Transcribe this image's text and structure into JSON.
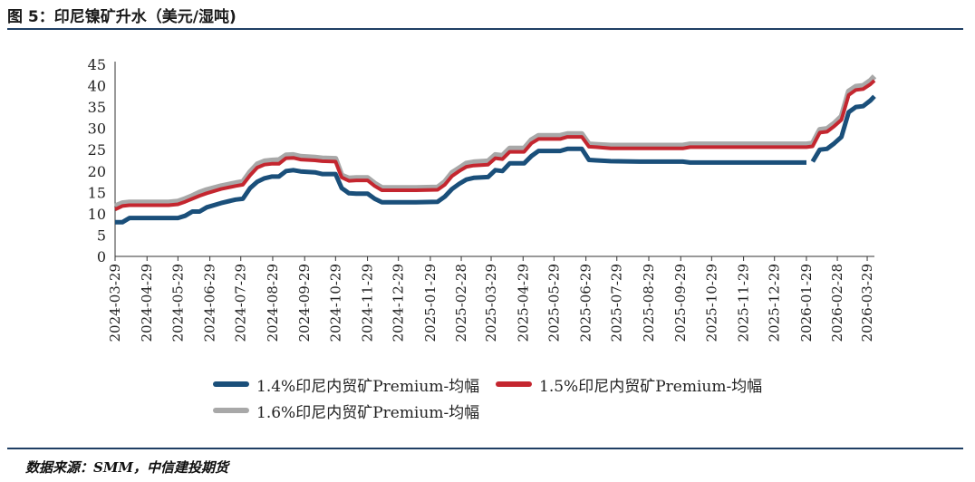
{
  "figure": {
    "title": "图 5：印尼镍矿升水（美元/湿吨)",
    "source": "数据来源：SMM，中信建投期货"
  },
  "colors": {
    "rule": "#1f3f64",
    "series_1": "#1a4f7a",
    "series_2": "#c4262f",
    "series_3": "#a8a8a8",
    "axis": "#333333"
  },
  "chart_data": {
    "type": "line",
    "title": "",
    "xlabel": "",
    "ylabel": "",
    "ylim": [
      0,
      45
    ],
    "yticks": [
      "0",
      "5",
      "10",
      "15",
      "20",
      "25",
      "30",
      "35",
      "40",
      "45"
    ],
    "xlim": [
      "2024-03-29",
      "2026-04-05"
    ],
    "xticks": [
      "2024-03-29",
      "2024-04-29",
      "2024-05-29",
      "2024-06-29",
      "2024-07-29",
      "2024-08-29",
      "2024-09-29",
      "2024-10-29",
      "2024-11-29",
      "2024-12-29",
      "2025-01-29",
      "2025-02-28",
      "2025-03-29",
      "2025-04-29",
      "2025-05-29",
      "2025-06-29",
      "2025-07-29",
      "2025-08-29",
      "2025-09-29",
      "2025-10-29",
      "2025-11-29",
      "2025-12-29",
      "2026-01-29",
      "2026-02-28",
      "2026-03-29"
    ],
    "grid": false,
    "legend_position": "bottom",
    "series": [
      {
        "name": "1.4%印尼内贸矿Premium-均幅",
        "points": [
          [
            "2024-03-29",
            8
          ],
          [
            "2024-04-05",
            8
          ],
          [
            "2024-04-12",
            9
          ],
          [
            "2024-05-20",
            9
          ],
          [
            "2024-05-29",
            9
          ],
          [
            "2024-06-05",
            9.5
          ],
          [
            "2024-06-12",
            10.5
          ],
          [
            "2024-06-19",
            10.5
          ],
          [
            "2024-06-26",
            11.5
          ],
          [
            "2024-07-10",
            12.5
          ],
          [
            "2024-07-24",
            13.3
          ],
          [
            "2024-07-31",
            13.5
          ],
          [
            "2024-08-07",
            16
          ],
          [
            "2024-08-14",
            17.5
          ],
          [
            "2024-08-21",
            18.3
          ],
          [
            "2024-08-28",
            18.7
          ],
          [
            "2024-09-04",
            18.7
          ],
          [
            "2024-09-11",
            20
          ],
          [
            "2024-09-18",
            20.2
          ],
          [
            "2024-09-25",
            19.9
          ],
          [
            "2024-10-09",
            19.7
          ],
          [
            "2024-10-16",
            19.3
          ],
          [
            "2024-10-29",
            19.3
          ],
          [
            "2024-11-04",
            16
          ],
          [
            "2024-11-11",
            14.8
          ],
          [
            "2024-11-18",
            14.7
          ],
          [
            "2024-11-29",
            14.7
          ],
          [
            "2024-12-06",
            13.5
          ],
          [
            "2024-12-13",
            12.7
          ],
          [
            "2025-01-15",
            12.7
          ],
          [
            "2025-02-05",
            12.8
          ],
          [
            "2025-02-12",
            14
          ],
          [
            "2025-02-19",
            15.8
          ],
          [
            "2025-02-26",
            17
          ],
          [
            "2025-03-05",
            18
          ],
          [
            "2025-03-12",
            18.4
          ],
          [
            "2025-03-26",
            18.6
          ],
          [
            "2025-04-02",
            20.2
          ],
          [
            "2025-04-09",
            20
          ],
          [
            "2025-04-16",
            21.8
          ],
          [
            "2025-04-30",
            21.8
          ],
          [
            "2025-05-07",
            23.5
          ],
          [
            "2025-05-14",
            24.7
          ],
          [
            "2025-05-28",
            24.7
          ],
          [
            "2025-06-04",
            24.7
          ],
          [
            "2025-06-11",
            25.2
          ],
          [
            "2025-06-25",
            25.2
          ],
          [
            "2025-07-02",
            22.6
          ],
          [
            "2025-07-09",
            22.5
          ],
          [
            "2025-07-23",
            22.3
          ],
          [
            "2025-08-20",
            22.2
          ],
          [
            "2025-10-01",
            22.2
          ],
          [
            "2025-10-08",
            22
          ],
          [
            "2026-01-29",
            22
          ]
        ],
        "points_after_gap": [
          [
            "2026-02-04",
            22.2
          ],
          [
            "2026-02-11",
            25
          ],
          [
            "2026-02-18",
            25.2
          ],
          [
            "2026-02-25",
            26.5
          ],
          [
            "2026-03-04",
            28
          ],
          [
            "2026-03-11",
            33.8
          ],
          [
            "2026-03-18",
            35
          ],
          [
            "2026-03-25",
            35.2
          ],
          [
            "2026-04-01",
            36.5
          ],
          [
            "2026-04-05",
            37.5
          ]
        ]
      },
      {
        "name": "1.5%印尼内贸矿Premium-均幅",
        "points": [
          [
            "2024-03-29",
            11
          ],
          [
            "2024-04-05",
            11.8
          ],
          [
            "2024-04-12",
            12
          ],
          [
            "2024-05-20",
            12
          ],
          [
            "2024-05-29",
            12.2
          ],
          [
            "2024-06-05",
            12.8
          ],
          [
            "2024-06-12",
            13.5
          ],
          [
            "2024-06-19",
            14.2
          ],
          [
            "2024-06-26",
            14.8
          ],
          [
            "2024-07-10",
            15.8
          ],
          [
            "2024-07-24",
            16.5
          ],
          [
            "2024-07-31",
            16.8
          ],
          [
            "2024-08-07",
            19
          ],
          [
            "2024-08-14",
            20.8
          ],
          [
            "2024-08-21",
            21.5
          ],
          [
            "2024-08-28",
            21.7
          ],
          [
            "2024-09-04",
            21.7
          ],
          [
            "2024-09-11",
            23
          ],
          [
            "2024-09-18",
            23.1
          ],
          [
            "2024-09-25",
            22.7
          ],
          [
            "2024-10-09",
            22.5
          ],
          [
            "2024-10-16",
            22.3
          ],
          [
            "2024-10-29",
            22.2
          ],
          [
            "2024-11-04",
            18.5
          ],
          [
            "2024-11-11",
            17.7
          ],
          [
            "2024-11-18",
            17.8
          ],
          [
            "2024-11-29",
            17.8
          ],
          [
            "2024-12-06",
            16.5
          ],
          [
            "2024-12-13",
            15.5
          ],
          [
            "2025-01-15",
            15.5
          ],
          [
            "2025-02-05",
            15.6
          ],
          [
            "2025-02-12",
            16.8
          ],
          [
            "2025-02-19",
            18.8
          ],
          [
            "2025-02-26",
            20
          ],
          [
            "2025-03-05",
            21
          ],
          [
            "2025-03-12",
            21.3
          ],
          [
            "2025-03-26",
            21.5
          ],
          [
            "2025-04-02",
            23
          ],
          [
            "2025-04-09",
            22.8
          ],
          [
            "2025-04-16",
            24.5
          ],
          [
            "2025-04-30",
            24.5
          ],
          [
            "2025-05-07",
            26.5
          ],
          [
            "2025-05-14",
            27.5
          ],
          [
            "2025-05-28",
            27.5
          ],
          [
            "2025-06-04",
            27.5
          ],
          [
            "2025-06-11",
            28
          ],
          [
            "2025-06-25",
            28
          ],
          [
            "2025-07-02",
            25.7
          ],
          [
            "2025-07-09",
            25.6
          ],
          [
            "2025-07-23",
            25.3
          ],
          [
            "2025-08-20",
            25.3
          ],
          [
            "2025-10-01",
            25.3
          ],
          [
            "2025-10-08",
            25.6
          ],
          [
            "2026-01-29",
            25.6
          ],
          [
            "2026-02-04",
            25.8
          ],
          [
            "2026-02-11",
            29
          ],
          [
            "2026-02-18",
            29.2
          ],
          [
            "2026-02-25",
            30.5
          ],
          [
            "2026-03-04",
            32
          ],
          [
            "2026-03-11",
            37.8
          ],
          [
            "2026-03-18",
            39
          ],
          [
            "2026-03-25",
            39.2
          ],
          [
            "2026-04-01",
            40.3
          ],
          [
            "2026-04-05",
            41.2
          ]
        ]
      },
      {
        "name": "1.6%印尼内贸矿Premium-均幅",
        "points": [
          [
            "2024-03-29",
            11.8
          ],
          [
            "2024-04-05",
            12.5
          ],
          [
            "2024-04-12",
            12.7
          ],
          [
            "2024-05-20",
            12.7
          ],
          [
            "2024-05-29",
            12.9
          ],
          [
            "2024-06-05",
            13.5
          ],
          [
            "2024-06-12",
            14.2
          ],
          [
            "2024-06-19",
            15
          ],
          [
            "2024-06-26",
            15.6
          ],
          [
            "2024-07-10",
            16.5
          ],
          [
            "2024-07-24",
            17.2
          ],
          [
            "2024-07-31",
            17.5
          ],
          [
            "2024-08-07",
            19.8
          ],
          [
            "2024-08-14",
            21.6
          ],
          [
            "2024-08-21",
            22.3
          ],
          [
            "2024-08-28",
            22.5
          ],
          [
            "2024-09-04",
            22.6
          ],
          [
            "2024-09-11",
            23.7
          ],
          [
            "2024-09-18",
            23.8
          ],
          [
            "2024-09-25",
            23.4
          ],
          [
            "2024-10-09",
            23.2
          ],
          [
            "2024-10-16",
            23
          ],
          [
            "2024-10-29",
            22.9
          ],
          [
            "2024-11-04",
            19
          ],
          [
            "2024-11-11",
            18.3
          ],
          [
            "2024-11-18",
            18.4
          ],
          [
            "2024-11-29",
            18.4
          ],
          [
            "2024-12-06",
            17.1
          ],
          [
            "2024-12-13",
            16.1
          ],
          [
            "2025-01-15",
            16.1
          ],
          [
            "2025-02-05",
            16.2
          ],
          [
            "2025-02-12",
            17.5
          ],
          [
            "2025-02-19",
            19.6
          ],
          [
            "2025-02-26",
            20.7
          ],
          [
            "2025-03-05",
            21.8
          ],
          [
            "2025-03-12",
            22.1
          ],
          [
            "2025-03-26",
            22.3
          ],
          [
            "2025-04-02",
            23.8
          ],
          [
            "2025-04-09",
            23.6
          ],
          [
            "2025-04-16",
            25.3
          ],
          [
            "2025-04-30",
            25.3
          ],
          [
            "2025-05-07",
            27.3
          ],
          [
            "2025-05-14",
            28.3
          ],
          [
            "2025-05-28",
            28.3
          ],
          [
            "2025-06-04",
            28.3
          ],
          [
            "2025-06-11",
            28.7
          ],
          [
            "2025-06-25",
            28.7
          ],
          [
            "2025-07-02",
            26.3
          ],
          [
            "2025-07-09",
            26.2
          ],
          [
            "2025-07-23",
            26
          ],
          [
            "2025-08-20",
            26
          ],
          [
            "2025-10-01",
            26
          ],
          [
            "2025-10-08",
            26.3
          ],
          [
            "2026-01-29",
            26.3
          ],
          [
            "2026-02-04",
            26.5
          ],
          [
            "2026-02-11",
            29.7
          ],
          [
            "2026-02-18",
            29.9
          ],
          [
            "2026-02-25",
            31.2
          ],
          [
            "2026-03-04",
            32.8
          ],
          [
            "2026-03-11",
            38.7
          ],
          [
            "2026-03-18",
            39.8
          ],
          [
            "2026-03-25",
            40
          ],
          [
            "2026-04-01",
            41.2
          ],
          [
            "2026-04-05",
            42.2
          ]
        ]
      }
    ]
  }
}
